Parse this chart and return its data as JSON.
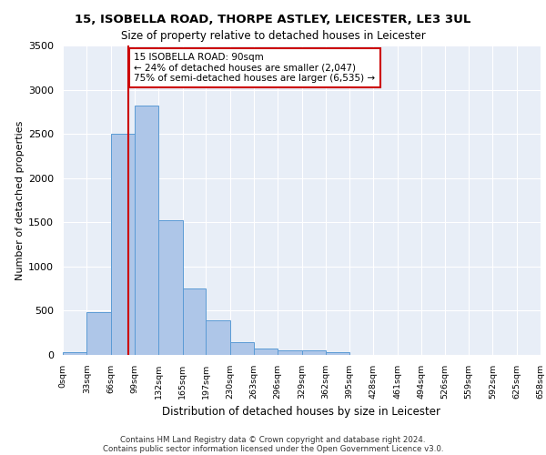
{
  "title1": "15, ISOBELLA ROAD, THORPE ASTLEY, LEICESTER, LE3 3UL",
  "title2": "Size of property relative to detached houses in Leicester",
  "xlabel": "Distribution of detached houses by size in Leicester",
  "ylabel": "Number of detached properties",
  "footer1": "Contains HM Land Registry data © Crown copyright and database right 2024.",
  "footer2": "Contains public sector information licensed under the Open Government Licence v3.0.",
  "bin_labels": [
    "0sqm",
    "33sqm",
    "66sqm",
    "99sqm",
    "132sqm",
    "165sqm",
    "197sqm",
    "230sqm",
    "263sqm",
    "296sqm",
    "329sqm",
    "362sqm",
    "395sqm",
    "428sqm",
    "461sqm",
    "494sqm",
    "526sqm",
    "559sqm",
    "592sqm",
    "625sqm",
    "658sqm"
  ],
  "bin_edges": [
    0,
    33,
    66,
    99,
    132,
    165,
    197,
    230,
    263,
    296,
    329,
    362,
    395,
    428,
    461,
    494,
    526,
    559,
    592,
    625,
    658
  ],
  "bar_heights": [
    30,
    480,
    2500,
    2820,
    1520,
    750,
    390,
    145,
    75,
    55,
    55,
    30,
    0,
    0,
    0,
    0,
    0,
    0,
    0,
    0
  ],
  "bar_color": "#aec6e8",
  "bar_edge_color": "#5b9bd5",
  "property_size": 90,
  "annotation_line1": "15 ISOBELLA ROAD: 90sqm",
  "annotation_line2": "← 24% of detached houses are smaller (2,047)",
  "annotation_line3": "75% of semi-detached houses are larger (6,535) →",
  "vline_color": "#cc0000",
  "background_color": "#e8eef7",
  "grid_color": "#ffffff",
  "ylim": [
    0,
    3500
  ],
  "yticks": [
    0,
    500,
    1000,
    1500,
    2000,
    2500,
    3000,
    3500
  ]
}
